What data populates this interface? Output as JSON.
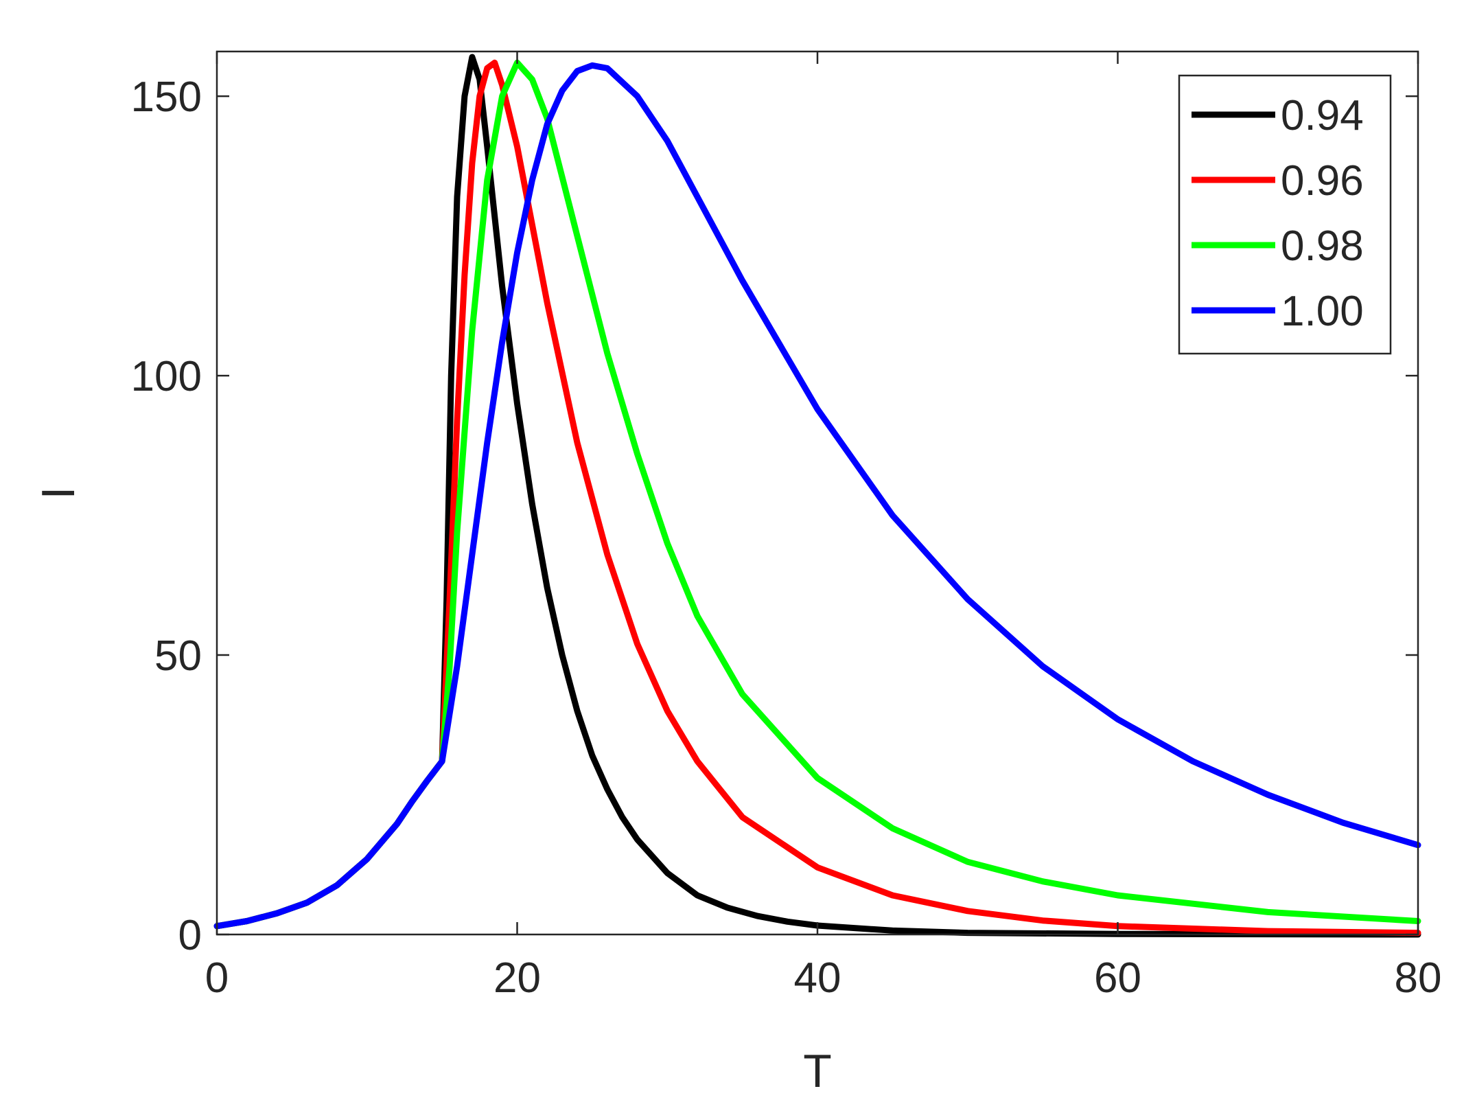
{
  "chart_data": {
    "type": "line",
    "title": "",
    "xlabel": "T",
    "ylabel": "I",
    "xlim": [
      0,
      80
    ],
    "ylim": [
      0,
      158
    ],
    "xticks": [
      0,
      20,
      40,
      60,
      80
    ],
    "yticks": [
      0,
      50,
      100,
      150
    ],
    "xtick_labels": [
      "0",
      "20",
      "40",
      "60",
      "80"
    ],
    "ytick_labels": [
      "0",
      "50",
      "100",
      "150"
    ],
    "grid": false,
    "legend_position": "top-right",
    "series": [
      {
        "name": "0.94",
        "color": "#000000",
        "points": [
          [
            0,
            1.5
          ],
          [
            2,
            2.4
          ],
          [
            4,
            3.8
          ],
          [
            6,
            5.7
          ],
          [
            8,
            8.8
          ],
          [
            10,
            13.5
          ],
          [
            12,
            19.8
          ],
          [
            13,
            23.8
          ],
          [
            14,
            27.5
          ],
          [
            15,
            31.0
          ],
          [
            15.3,
            60
          ],
          [
            15.6,
            100
          ],
          [
            16,
            132
          ],
          [
            16.5,
            150
          ],
          [
            17,
            157
          ],
          [
            17.5,
            153
          ],
          [
            18,
            141
          ],
          [
            19,
            116
          ],
          [
            20,
            95
          ],
          [
            21,
            77
          ],
          [
            22,
            62
          ],
          [
            23,
            50
          ],
          [
            24,
            40
          ],
          [
            25,
            32
          ],
          [
            26,
            26
          ],
          [
            27,
            21
          ],
          [
            28,
            17
          ],
          [
            30,
            11
          ],
          [
            32,
            7
          ],
          [
            34,
            4.8
          ],
          [
            36,
            3.3
          ],
          [
            38,
            2.3
          ],
          [
            40,
            1.6
          ],
          [
            45,
            0.7
          ],
          [
            50,
            0.3
          ],
          [
            60,
            0.1
          ],
          [
            80,
            0
          ]
        ]
      },
      {
        "name": "0.96",
        "color": "#ff0000",
        "points": [
          [
            0,
            1.5
          ],
          [
            2,
            2.4
          ],
          [
            4,
            3.8
          ],
          [
            6,
            5.7
          ],
          [
            8,
            8.8
          ],
          [
            10,
            13.5
          ],
          [
            12,
            19.8
          ],
          [
            13,
            23.8
          ],
          [
            14,
            27.5
          ],
          [
            15,
            31.0
          ],
          [
            15.5,
            60
          ],
          [
            16,
            92
          ],
          [
            16.5,
            118
          ],
          [
            17,
            138
          ],
          [
            17.5,
            150
          ],
          [
            18,
            155
          ],
          [
            18.5,
            156
          ],
          [
            19,
            152
          ],
          [
            20,
            141
          ],
          [
            22,
            113
          ],
          [
            24,
            88
          ],
          [
            26,
            68
          ],
          [
            28,
            52
          ],
          [
            30,
            40
          ],
          [
            32,
            31
          ],
          [
            35,
            21
          ],
          [
            40,
            12
          ],
          [
            45,
            7
          ],
          [
            50,
            4.2
          ],
          [
            55,
            2.5
          ],
          [
            60,
            1.5
          ],
          [
            70,
            0.6
          ],
          [
            80,
            0.3
          ]
        ]
      },
      {
        "name": "0.98",
        "color": "#00ff00",
        "points": [
          [
            0,
            1.5
          ],
          [
            2,
            2.4
          ],
          [
            4,
            3.8
          ],
          [
            6,
            5.7
          ],
          [
            8,
            8.8
          ],
          [
            10,
            13.5
          ],
          [
            12,
            19.8
          ],
          [
            13,
            23.8
          ],
          [
            14,
            27.5
          ],
          [
            15,
            31.0
          ],
          [
            15.5,
            48
          ],
          [
            16,
            72
          ],
          [
            17,
            108
          ],
          [
            18,
            135
          ],
          [
            19,
            150
          ],
          [
            20,
            156
          ],
          [
            21,
            153
          ],
          [
            22,
            146
          ],
          [
            24,
            125
          ],
          [
            26,
            104
          ],
          [
            28,
            86
          ],
          [
            30,
            70
          ],
          [
            32,
            57
          ],
          [
            35,
            43
          ],
          [
            40,
            28
          ],
          [
            45,
            19
          ],
          [
            50,
            13
          ],
          [
            55,
            9.5
          ],
          [
            60,
            7
          ],
          [
            70,
            4
          ],
          [
            80,
            2.4
          ]
        ]
      },
      {
        "name": "1.00",
        "color": "#0000ff",
        "points": [
          [
            0,
            1.5
          ],
          [
            2,
            2.4
          ],
          [
            4,
            3.8
          ],
          [
            6,
            5.7
          ],
          [
            8,
            8.8
          ],
          [
            10,
            13.5
          ],
          [
            12,
            19.8
          ],
          [
            13,
            23.8
          ],
          [
            14,
            27.5
          ],
          [
            15,
            31.0
          ],
          [
            16,
            48
          ],
          [
            17,
            68
          ],
          [
            18,
            88
          ],
          [
            19,
            106
          ],
          [
            20,
            122
          ],
          [
            21,
            135
          ],
          [
            22,
            145
          ],
          [
            23,
            151
          ],
          [
            24,
            154.5
          ],
          [
            25,
            155.5
          ],
          [
            26,
            155
          ],
          [
            28,
            150
          ],
          [
            30,
            142
          ],
          [
            32,
            132
          ],
          [
            35,
            117
          ],
          [
            40,
            94
          ],
          [
            45,
            75
          ],
          [
            50,
            60
          ],
          [
            55,
            48
          ],
          [
            60,
            38.5
          ],
          [
            65,
            31
          ],
          [
            70,
            25
          ],
          [
            75,
            20
          ],
          [
            80,
            16
          ]
        ]
      }
    ]
  }
}
